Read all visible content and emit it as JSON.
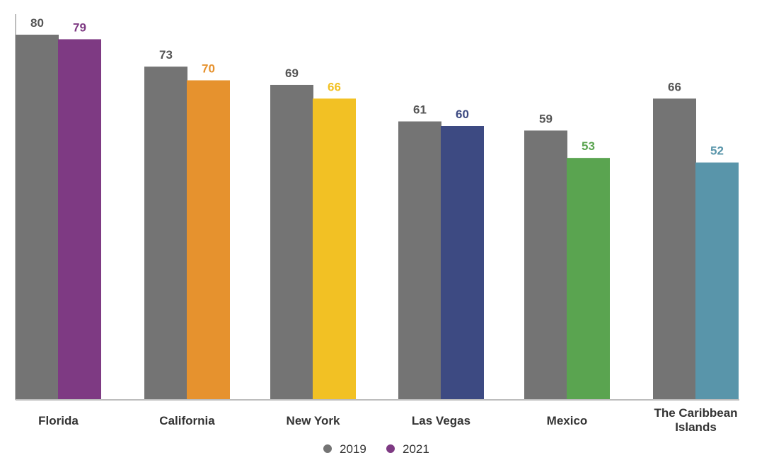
{
  "chart_data": {
    "type": "bar",
    "categories": [
      "Florida",
      "California",
      "New York",
      "Las Vegas",
      "Mexico",
      "The Caribbean Islands"
    ],
    "category_lines": [
      [
        "Florida"
      ],
      [
        "California"
      ],
      [
        "New York"
      ],
      [
        "Las Vegas"
      ],
      [
        "Mexico"
      ],
      [
        "The Caribbean",
        "Islands"
      ]
    ],
    "series": [
      {
        "name": "2019",
        "values": [
          80,
          73,
          69,
          61,
          59,
          66
        ]
      },
      {
        "name": "2021",
        "values": [
          79,
          70,
          66,
          60,
          53,
          52
        ]
      }
    ],
    "colors": {
      "series_2019": "#747474",
      "series_2021_by_category": [
        "#7e3a83",
        "#e6922e",
        "#f2c124",
        "#3d4a82",
        "#5aa450",
        "#5995aa"
      ],
      "legend_2021": "#7e3a83",
      "label_2019": "#555555"
    },
    "ylim": [
      0,
      80
    ],
    "grid": false,
    "legend": {
      "position": "bottom-center",
      "entries": [
        "2019",
        "2021"
      ]
    }
  }
}
